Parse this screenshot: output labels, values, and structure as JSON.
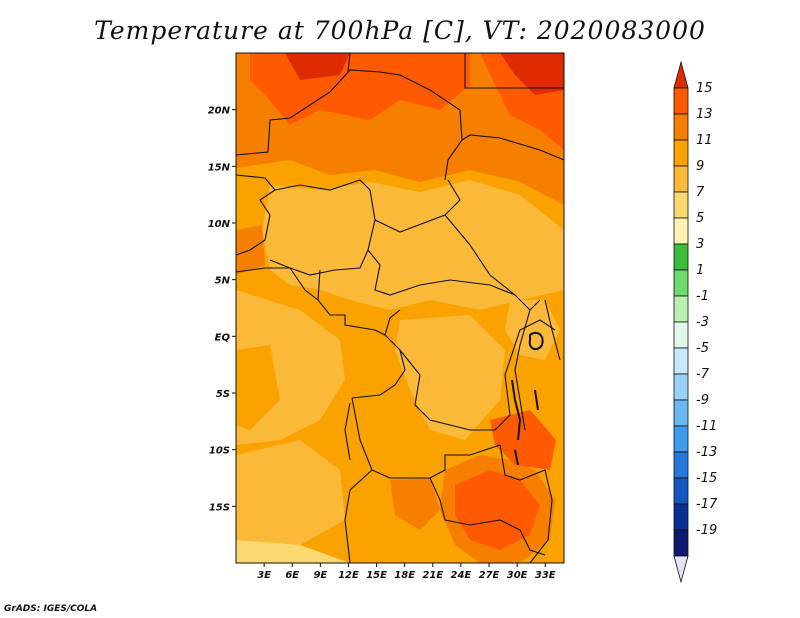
{
  "title": "Temperature at 700hPa [C], VT: 2020083000",
  "footer": "GrADS: IGES/COLA",
  "map": {
    "lon_range": [
      0,
      35
    ],
    "lat_range": [
      -20,
      25
    ],
    "x_ticks": [
      {
        "value": 3,
        "label": "3E"
      },
      {
        "value": 6,
        "label": "6E"
      },
      {
        "value": 9,
        "label": "9E"
      },
      {
        "value": 12,
        "label": "12E"
      },
      {
        "value": 15,
        "label": "15E"
      },
      {
        "value": 18,
        "label": "18E"
      },
      {
        "value": 21,
        "label": "21E"
      },
      {
        "value": 24,
        "label": "24E"
      },
      {
        "value": 27,
        "label": "27E"
      },
      {
        "value": 30,
        "label": "30E"
      },
      {
        "value": 33,
        "label": "33E"
      }
    ],
    "y_ticks": [
      {
        "value": 20,
        "label": "20N"
      },
      {
        "value": 15,
        "label": "15N"
      },
      {
        "value": 10,
        "label": "10N"
      },
      {
        "value": 5,
        "label": "5N"
      },
      {
        "value": 0,
        "label": "EQ"
      },
      {
        "value": -5,
        "label": "5S"
      },
      {
        "value": -10,
        "label": "10S"
      },
      {
        "value": -15,
        "label": "15S"
      }
    ]
  },
  "colorbar": {
    "labels": [
      "15",
      "13",
      "11",
      "9",
      "7",
      "5",
      "3",
      "1",
      "-1",
      "-3",
      "-5",
      "-7",
      "-9",
      "-11",
      "-13",
      "-15",
      "-17",
      "-19"
    ],
    "colors": [
      "#e02a00",
      "#ff5a00",
      "#f77f00",
      "#f9a200",
      "#fbb93a",
      "#fcd970",
      "#fcf3b0",
      "#3dbb3d",
      "#6edb6e",
      "#b8f0b0",
      "#e1f7ee",
      "#c9e8fb",
      "#98d2f8",
      "#6ab7f2",
      "#3f9bed",
      "#2778db",
      "#1456c2",
      "#0a2f96",
      "#0c1a70",
      "#e3e3f7"
    ]
  }
}
